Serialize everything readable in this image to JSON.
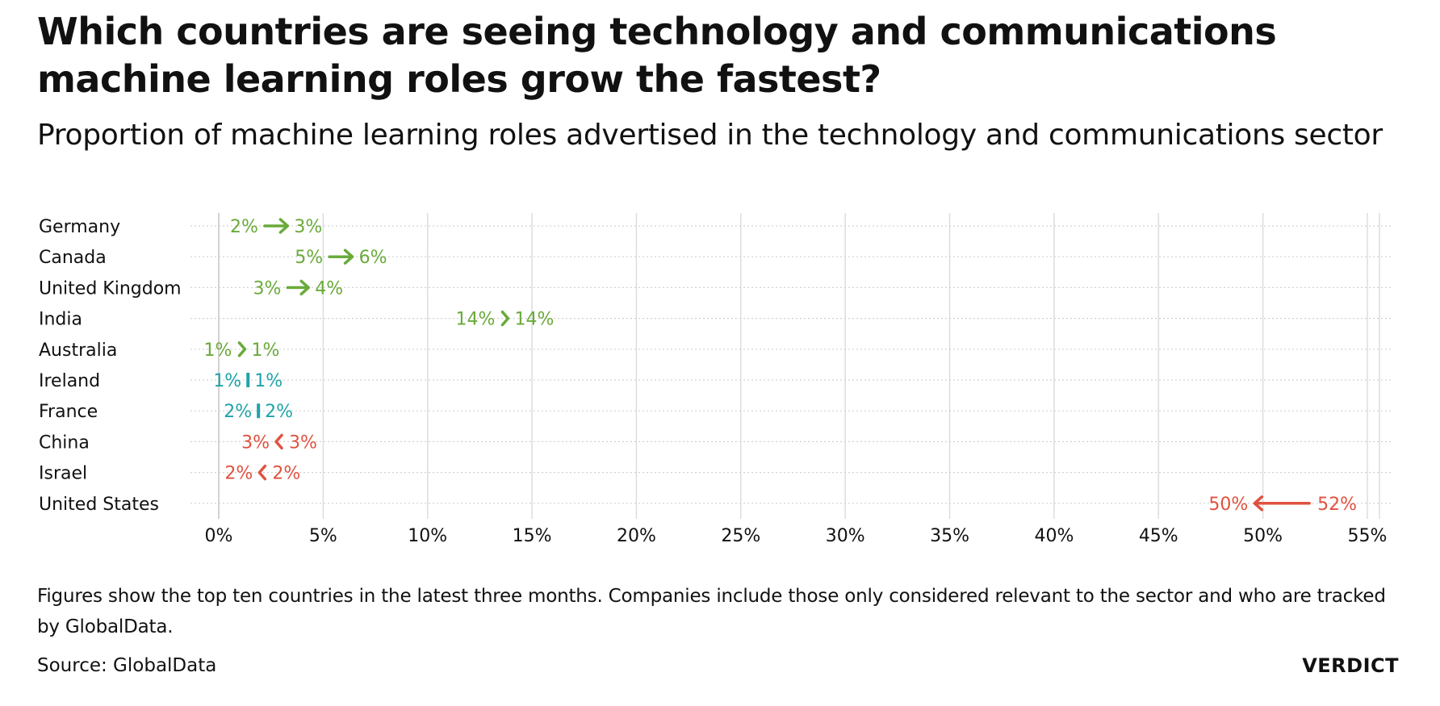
{
  "title": "Which countries are seeing technology and communications machine learning roles grow the fastest?",
  "subtitle": "Proportion of machine learning roles advertised in the technology and communications sector",
  "footnote": "Figures show the top ten countries in the latest three months. Companies include those only considered relevant to the sector and who are tracked by GlobalData.",
  "source": "Source: GlobalData",
  "brand": "VERDICT",
  "colors": {
    "increase": "#6aaa3a",
    "unchanged": "#1fa3a8",
    "decrease": "#e0523f",
    "grid": "#dddddd",
    "text": "#111111"
  },
  "chart_data": {
    "type": "arrow-dot",
    "x_axis": {
      "min": 0,
      "max": 55,
      "ticks": [
        0,
        5,
        10,
        15,
        20,
        25,
        30,
        35,
        40,
        45,
        50,
        55
      ],
      "tick_labels": [
        "0%",
        "5%",
        "10%",
        "15%",
        "20%",
        "25%",
        "30%",
        "35%",
        "40%",
        "45%",
        "50%",
        "55%"
      ]
    },
    "grid": true,
    "rows": [
      {
        "country": "Germany",
        "from": 2.2,
        "to": 3.3,
        "from_label": "2%",
        "to_label": "3%",
        "trend": "increase"
      },
      {
        "country": "Canada",
        "from": 5.3,
        "to": 6.4,
        "from_label": "5%",
        "to_label": "6%",
        "trend": "increase"
      },
      {
        "country": "United Kingdom",
        "from": 3.3,
        "to": 4.3,
        "from_label": "3%",
        "to_label": "4%",
        "trend": "increase"
      },
      {
        "country": "India",
        "from": 13.6,
        "to": 13.8,
        "from_label": "14%",
        "to_label": "14%",
        "trend": "increase"
      },
      {
        "country": "Australia",
        "from": 1.0,
        "to": 1.2,
        "from_label": "1%",
        "to_label": "1%",
        "trend": "increase"
      },
      {
        "country": "Ireland",
        "from": 1.4,
        "to": 1.4,
        "from_label": "1%",
        "to_label": "1%",
        "trend": "unchanged"
      },
      {
        "country": "France",
        "from": 1.9,
        "to": 1.9,
        "from_label": "2%",
        "to_label": "2%",
        "trend": "unchanged"
      },
      {
        "country": "China",
        "from": 3.0,
        "to": 2.8,
        "from_label": "3%",
        "to_label": "3%",
        "trend": "decrease"
      },
      {
        "country": "Israel",
        "from": 2.2,
        "to": 2.0,
        "from_label": "2%",
        "to_label": "2%",
        "trend": "decrease"
      },
      {
        "country": "United States",
        "from": 52.3,
        "to": 49.6,
        "from_label": "52%",
        "to_label": "50%",
        "trend": "decrease"
      }
    ]
  }
}
